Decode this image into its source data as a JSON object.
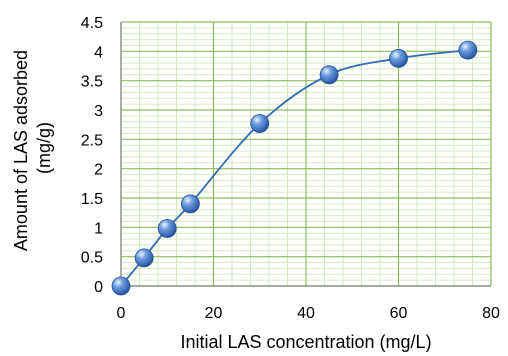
{
  "chart_data": {
    "type": "scatter",
    "title": "",
    "xlabel": "Initial LAS concentration (mg/L)",
    "ylabel_lines": [
      "Amount of LAS adsorbed",
      "(mg/g)"
    ],
    "xlim": [
      0,
      80
    ],
    "ylim": [
      0,
      4.5
    ],
    "x_ticks": [
      "0",
      "20",
      "40",
      "60",
      "80"
    ],
    "y_ticks": [
      "0",
      "0.5",
      "1",
      "1.5",
      "2",
      "2.5",
      "3",
      "3.5",
      "4",
      "4.5"
    ],
    "grid": true,
    "legend": "none",
    "series": [
      {
        "x": [
          0,
          5,
          10,
          15,
          30,
          45,
          60,
          75
        ],
        "y": [
          0,
          0.48,
          0.98,
          1.4,
          2.77,
          3.6,
          3.88,
          4.02
        ]
      }
    ],
    "colors": {
      "marker": "#3a6fc4",
      "line": "#2f6db5",
      "major_grid": "#8cbd5a",
      "minor_grid": "#d7e8c4",
      "axis": "#808080"
    }
  }
}
